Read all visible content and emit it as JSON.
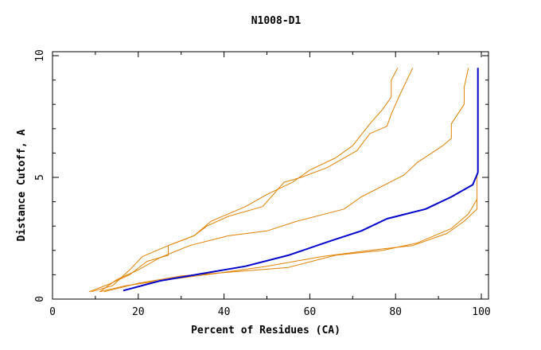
{
  "chart_data": {
    "type": "line",
    "title": "N1008-D1",
    "xlabel": "Percent of Residues (CA)",
    "ylabel": "Distance Cutoff, A",
    "xlim": [
      0,
      100
    ],
    "ylim": [
      0,
      10
    ],
    "x_ticks": [
      "0",
      "20",
      "40",
      "60",
      "80",
      "100"
    ],
    "y_ticks": [
      "0",
      "5",
      "10"
    ],
    "grid": false,
    "legend": "none",
    "colors": {
      "highlight": "#0000cc",
      "other": "#e08000"
    },
    "series": [
      {
        "highlight": true,
        "points": [
          [
            16.5,
            0.35
          ],
          [
            25,
            0.75
          ],
          [
            35,
            1.05
          ],
          [
            45,
            1.35
          ],
          [
            55,
            1.8
          ],
          [
            65,
            2.4
          ],
          [
            72,
            2.8
          ],
          [
            78,
            3.3
          ],
          [
            87,
            3.7
          ],
          [
            93,
            4.2
          ],
          [
            98,
            4.7
          ],
          [
            99.2,
            5.2
          ],
          [
            99.2,
            7.0
          ],
          [
            99.2,
            9.5
          ]
        ]
      },
      {
        "highlight": false,
        "points": [
          [
            8.5,
            0.3
          ],
          [
            13,
            0.6
          ],
          [
            18,
            1.0
          ],
          [
            22,
            1.55
          ],
          [
            27,
            1.8
          ],
          [
            27,
            2.2
          ],
          [
            33,
            2.6
          ],
          [
            36,
            3.0
          ],
          [
            41,
            3.4
          ],
          [
            49,
            3.8
          ],
          [
            54,
            4.8
          ],
          [
            58,
            5.0
          ],
          [
            64,
            5.4
          ],
          [
            71,
            6.1
          ],
          [
            74,
            6.8
          ],
          [
            78,
            7.1
          ],
          [
            79,
            7.6
          ],
          [
            81,
            8.4
          ],
          [
            84,
            9.5
          ]
        ]
      },
      {
        "highlight": false,
        "points": [
          [
            9,
            0.3
          ],
          [
            14,
            0.55
          ],
          [
            18,
            1.2
          ],
          [
            21,
            1.75
          ],
          [
            27,
            2.2
          ],
          [
            33,
            2.6
          ],
          [
            37,
            3.2
          ],
          [
            45,
            3.8
          ],
          [
            50,
            4.3
          ],
          [
            56,
            4.8
          ],
          [
            60,
            5.3
          ],
          [
            66,
            5.8
          ],
          [
            70,
            6.3
          ],
          [
            74,
            7.2
          ],
          [
            77,
            7.8
          ],
          [
            79,
            8.3
          ],
          [
            79,
            9.0
          ],
          [
            80.5,
            9.5
          ]
        ]
      },
      {
        "highlight": false,
        "points": [
          [
            11,
            0.3
          ],
          [
            15,
            0.8
          ],
          [
            20,
            1.2
          ],
          [
            25,
            1.7
          ],
          [
            32,
            2.2
          ],
          [
            41,
            2.6
          ],
          [
            50,
            2.8
          ],
          [
            57,
            3.2
          ],
          [
            68,
            3.7
          ],
          [
            72,
            4.2
          ],
          [
            82,
            5.1
          ],
          [
            85,
            5.6
          ],
          [
            91,
            6.3
          ],
          [
            93,
            6.6
          ],
          [
            93,
            7.2
          ],
          [
            96,
            8.0
          ],
          [
            96,
            8.7
          ],
          [
            97,
            9.5
          ]
        ]
      },
      {
        "highlight": false,
        "points": [
          [
            11,
            0.3
          ],
          [
            17,
            0.55
          ],
          [
            27,
            0.8
          ],
          [
            38,
            1.05
          ],
          [
            50,
            1.35
          ],
          [
            63,
            1.75
          ],
          [
            74,
            2.0
          ],
          [
            84,
            2.2
          ],
          [
            92,
            2.7
          ],
          [
            96,
            3.2
          ],
          [
            99,
            3.7
          ],
          [
            99,
            4.4
          ],
          [
            99,
            5.1
          ]
        ]
      },
      {
        "highlight": false,
        "points": [
          [
            12,
            0.3
          ],
          [
            20,
            0.65
          ],
          [
            30,
            0.95
          ],
          [
            41,
            1.1
          ],
          [
            55,
            1.3
          ],
          [
            66,
            1.8
          ],
          [
            77,
            2.0
          ],
          [
            85,
            2.3
          ],
          [
            93,
            2.9
          ],
          [
            97,
            3.5
          ],
          [
            99,
            4.1
          ]
        ]
      }
    ]
  }
}
